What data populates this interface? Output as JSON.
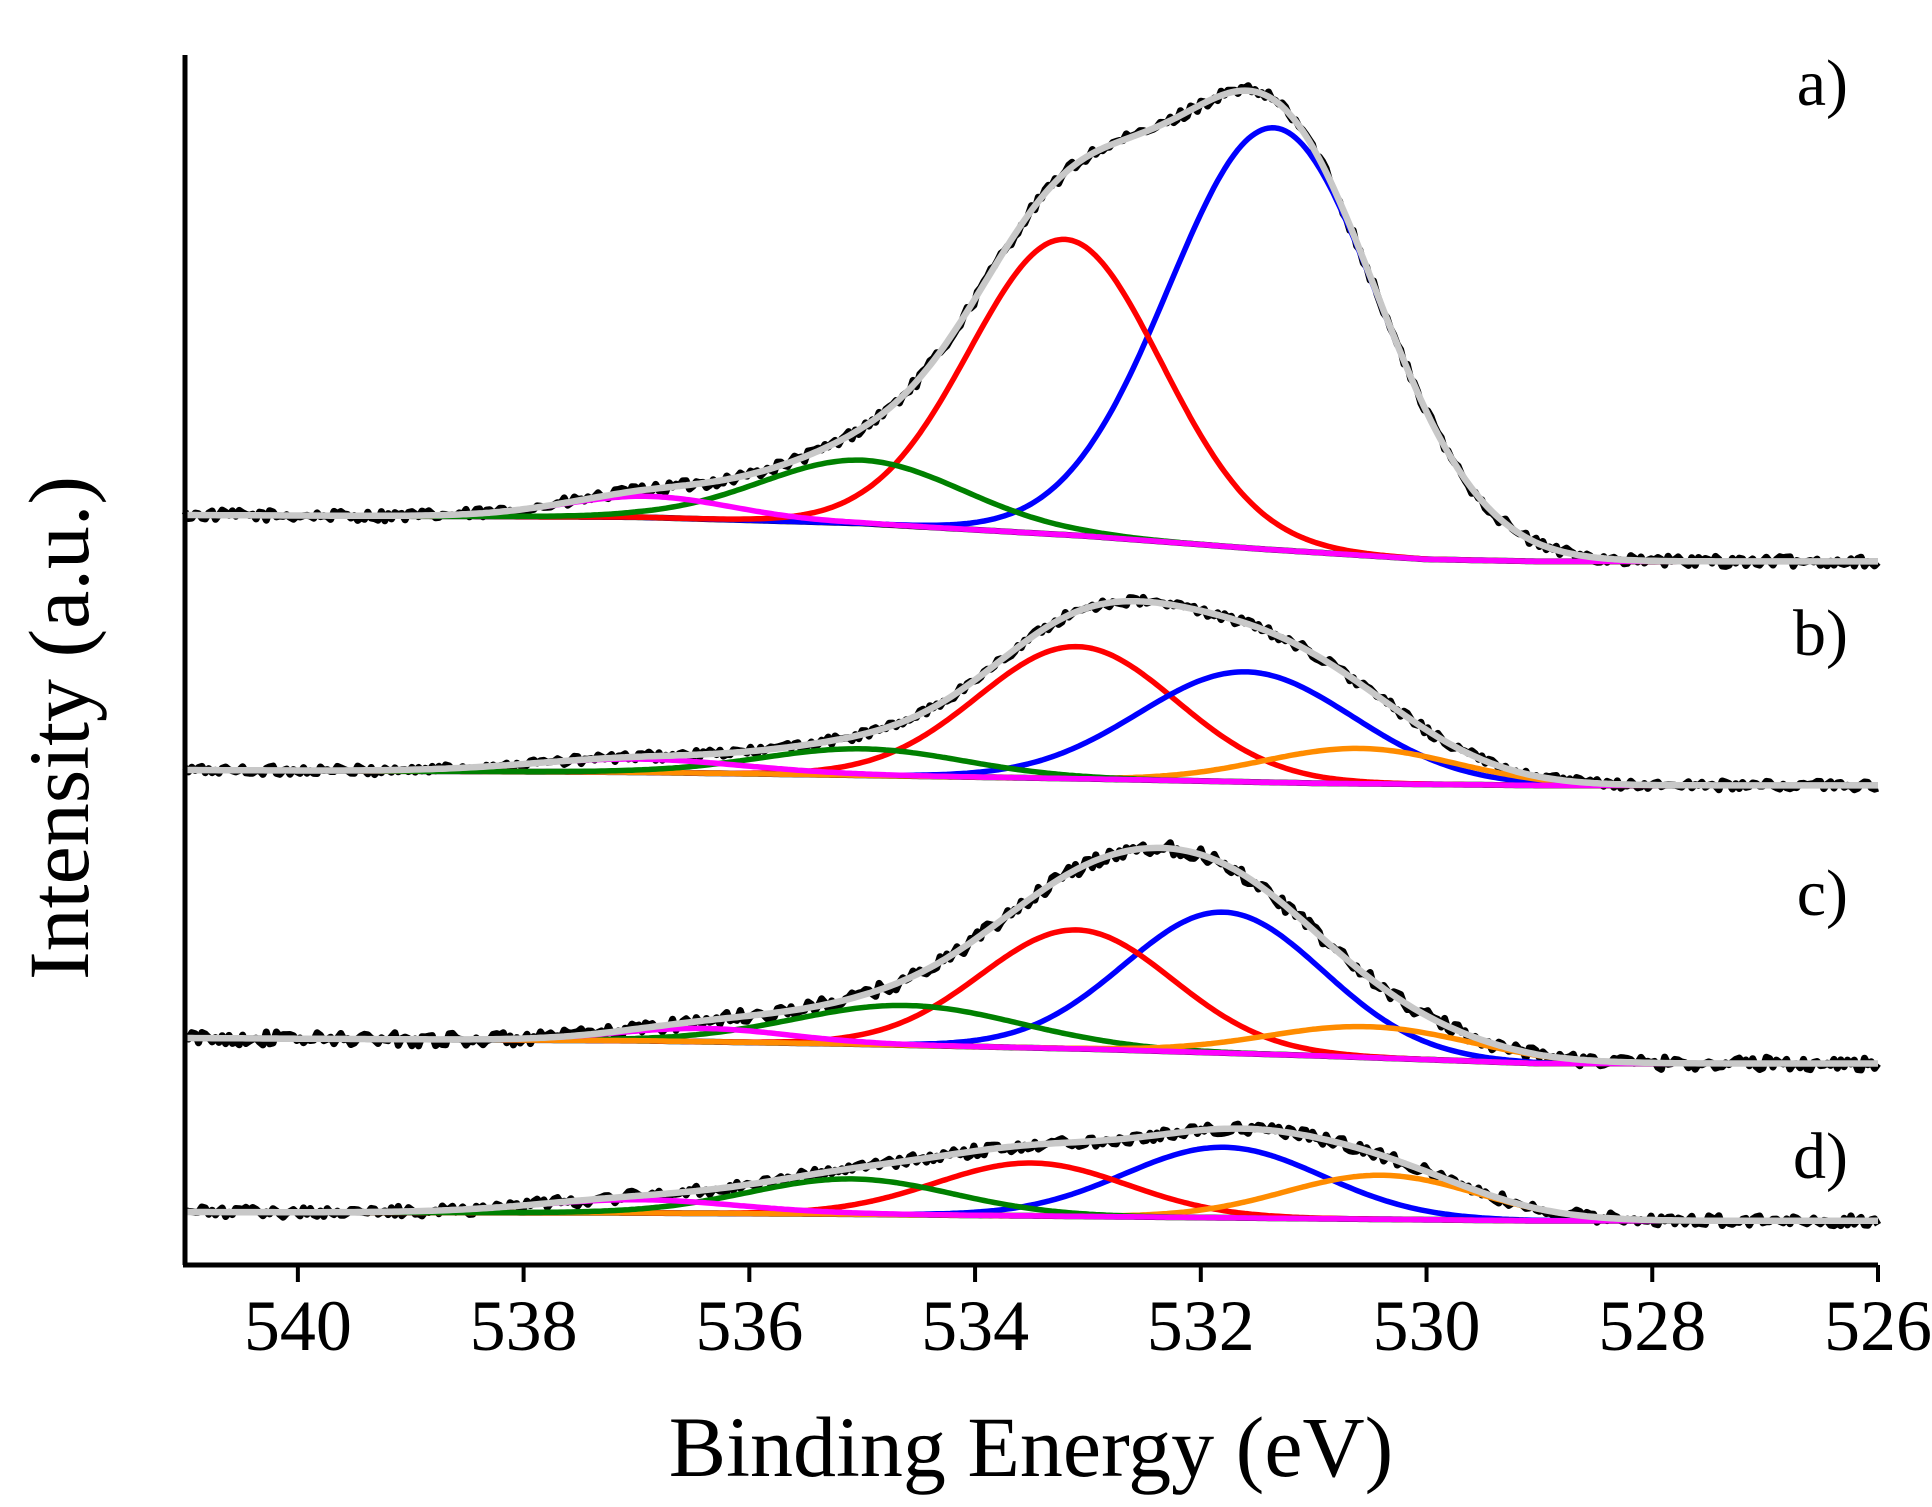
{
  "chart_data": {
    "type": "line",
    "title": "",
    "xlabel": "Binding Energy (eV)",
    "ylabel": "Intensity (a.u.)",
    "xlim": [
      541,
      526
    ],
    "x_reversed": true,
    "xticks": [
      540,
      538,
      536,
      534,
      532,
      530,
      528,
      526
    ],
    "yticks_shown": false,
    "legend": "none",
    "grid": false,
    "colors": {
      "data": "#000000",
      "background": "#000000",
      "envelope": "#c8c8c8",
      "comp1": "#0000ff",
      "comp2": "#ff0000",
      "comp3": "#008000",
      "comp4": "#ff00ff",
      "comp5": "#ff8c00"
    },
    "panels": [
      {
        "label": "a)",
        "background": [
          [
            541,
            0.0
          ],
          [
            537,
            -0.005
          ],
          [
            535,
            -0.02
          ],
          [
            533,
            -0.05
          ],
          [
            531.5,
            -0.08
          ],
          [
            530,
            -0.105
          ],
          [
            529,
            -0.11
          ],
          [
            526,
            -0.11
          ]
        ],
        "components": [
          {
            "name": "comp1",
            "color": "#0000ff",
            "center": 531.35,
            "height": 1.0,
            "sigma": 0.93
          },
          {
            "name": "comp2",
            "color": "#ff0000",
            "center": 533.2,
            "height": 0.7,
            "sigma": 0.85
          },
          {
            "name": "comp3",
            "color": "#008000",
            "center": 535.0,
            "height": 0.15,
            "sigma": 0.9
          },
          {
            "name": "comp4",
            "color": "#ff00ff",
            "center": 536.9,
            "height": 0.05,
            "sigma": 0.75
          }
        ],
        "noise": 0.012
      },
      {
        "label": "b)",
        "background": [
          [
            541,
            0.0
          ],
          [
            537,
            -0.005
          ],
          [
            535,
            -0.012
          ],
          [
            533,
            -0.02
          ],
          [
            531,
            -0.03
          ],
          [
            529,
            -0.035
          ],
          [
            526,
            -0.035
          ]
        ],
        "components": [
          {
            "name": "comp2",
            "color": "#ff0000",
            "center": 533.1,
            "height": 0.3,
            "sigma": 0.88
          },
          {
            "name": "comp1",
            "color": "#0000ff",
            "center": 531.6,
            "height": 0.25,
            "sigma": 0.95
          },
          {
            "name": "comp5",
            "color": "#ff8c00",
            "center": 530.6,
            "height": 0.08,
            "sigma": 0.85
          },
          {
            "name": "comp3",
            "color": "#008000",
            "center": 535.0,
            "height": 0.06,
            "sigma": 0.9
          },
          {
            "name": "comp4",
            "color": "#ff00ff",
            "center": 537.0,
            "height": 0.03,
            "sigma": 0.95
          }
        ],
        "noise": 0.01
      },
      {
        "label": "c)",
        "background": [
          [
            541,
            0.0
          ],
          [
            537,
            -0.006
          ],
          [
            535,
            -0.014
          ],
          [
            533,
            -0.025
          ],
          [
            531,
            -0.04
          ],
          [
            529,
            -0.058
          ],
          [
            526,
            -0.058
          ]
        ],
        "components": [
          {
            "name": "comp1",
            "color": "#0000ff",
            "center": 531.8,
            "height": 0.32,
            "sigma": 0.88
          },
          {
            "name": "comp2",
            "color": "#ff0000",
            "center": 533.1,
            "height": 0.27,
            "sigma": 0.85
          },
          {
            "name": "comp3",
            "color": "#008000",
            "center": 534.6,
            "height": 0.09,
            "sigma": 1.0
          },
          {
            "name": "comp5",
            "color": "#ff8c00",
            "center": 530.5,
            "height": 0.07,
            "sigma": 0.9
          },
          {
            "name": "comp4",
            "color": "#ff00ff",
            "center": 536.4,
            "height": 0.03,
            "sigma": 0.75
          }
        ],
        "noise": 0.015
      },
      {
        "label": "d)",
        "background": [
          [
            541,
            0.0
          ],
          [
            537,
            -0.002
          ],
          [
            535,
            -0.005
          ],
          [
            533,
            -0.01
          ],
          [
            531,
            -0.015
          ],
          [
            529,
            -0.02
          ],
          [
            526,
            -0.02
          ]
        ],
        "components": [
          {
            "name": "comp1",
            "color": "#0000ff",
            "center": 531.8,
            "height": 0.16,
            "sigma": 0.88
          },
          {
            "name": "comp2",
            "color": "#ff0000",
            "center": 533.5,
            "height": 0.12,
            "sigma": 0.85
          },
          {
            "name": "comp5",
            "color": "#ff8c00",
            "center": 530.4,
            "height": 0.1,
            "sigma": 0.85
          },
          {
            "name": "comp3",
            "color": "#008000",
            "center": 535.1,
            "height": 0.08,
            "sigma": 0.9
          },
          {
            "name": "comp4",
            "color": "#ff00ff",
            "center": 537.0,
            "height": 0.03,
            "sigma": 0.9
          }
        ],
        "noise": 0.012
      }
    ]
  }
}
